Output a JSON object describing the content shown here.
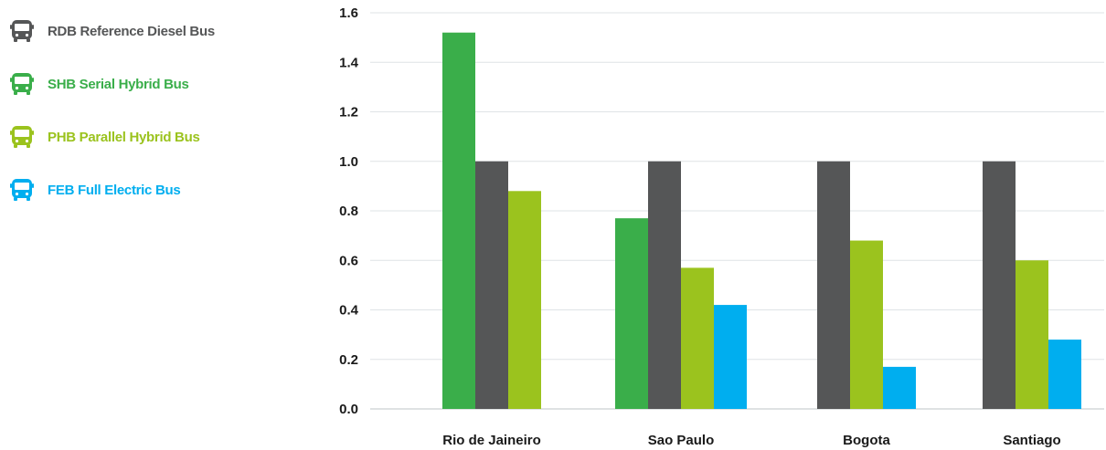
{
  "legend": [
    {
      "code": "RDB",
      "label": "RDB Reference Diesel Bus",
      "color": "#555657",
      "icon": "bus-icon"
    },
    {
      "code": "SHB",
      "label": "SHB Serial Hybrid Bus",
      "color": "#3aae4a",
      "icon": "bus-icon"
    },
    {
      "code": "PHB",
      "label": "PHB Parallel Hybrid Bus",
      "color": "#9bc31e",
      "icon": "bus-icon"
    },
    {
      "code": "FEB",
      "label": "FEB Full Electric Bus",
      "color": "#00aeef",
      "icon": "bus-icon"
    }
  ],
  "chart_data": {
    "type": "bar",
    "title": "",
    "xlabel": "",
    "ylabel": "",
    "ylim": [
      0,
      1.6
    ],
    "yticks": [
      "0.0",
      "0.2",
      "0.4",
      "0.6",
      "0.8",
      "1.0",
      "1.2",
      "1.4",
      "1.6"
    ],
    "grid": true,
    "legend_position": "left",
    "categories": [
      "Rio de Jaineiro",
      "Sao Paulo",
      "Bogota",
      "Santiago"
    ],
    "series": [
      {
        "name": "SHB Serial Hybrid Bus",
        "color": "#3aae4a",
        "values": [
          1.52,
          0.77,
          null,
          null
        ]
      },
      {
        "name": "RDB Reference Diesel Bus",
        "color": "#555657",
        "values": [
          1.0,
          1.0,
          1.0,
          1.0
        ]
      },
      {
        "name": "PHB Parallel Hybrid Bus",
        "color": "#9bc31e",
        "values": [
          0.88,
          0.57,
          0.68,
          0.6
        ]
      },
      {
        "name": "FEB Full Electric Bus",
        "color": "#00aeef",
        "values": [
          null,
          0.42,
          0.17,
          0.28
        ]
      }
    ]
  }
}
